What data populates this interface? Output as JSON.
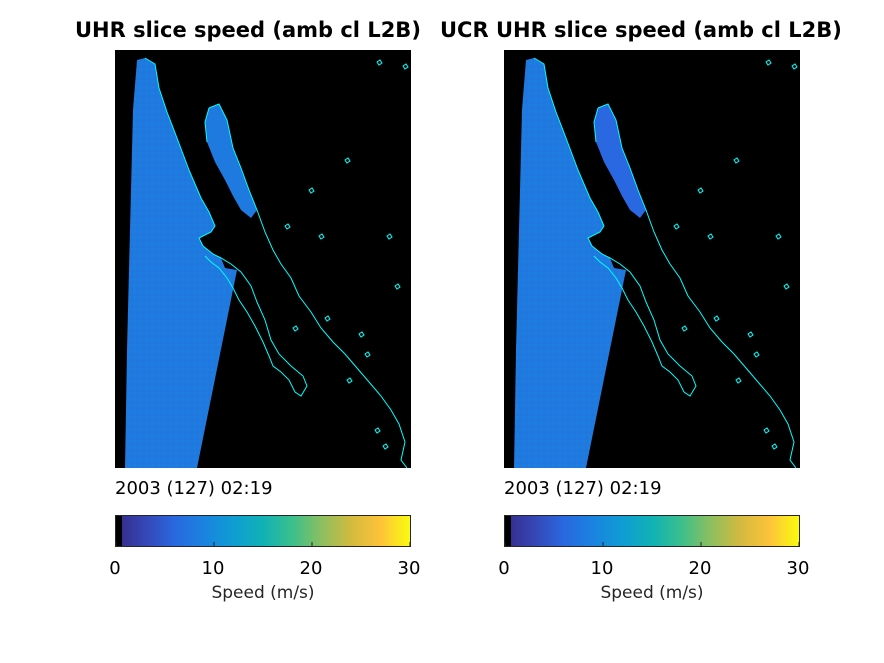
{
  "chart_data": [
    {
      "type": "heatmap",
      "title": "UHR slice speed (amb cl L2B)",
      "date_label": "2003 (127) 02:19",
      "colorbar": {
        "label": "Speed (m/s)",
        "range": [
          0,
          30
        ],
        "ticks": [
          0,
          10,
          20,
          30
        ],
        "colormap": "parula"
      },
      "swath_speed_typical": 8,
      "gulf_speed_typical": 8,
      "coast_color": "#00ffff",
      "nodata_color": "#000000"
    },
    {
      "type": "heatmap",
      "title": "UCR UHR slice speed (amb cl L2B)",
      "date_label": "2003 (127) 02:19",
      "colorbar": {
        "label": "Speed (m/s)",
        "range": [
          0,
          30
        ],
        "ticks": [
          0,
          10,
          20,
          30
        ],
        "colormap": "parula"
      },
      "swath_speed_typical": 8,
      "gulf_speed_typical": 6,
      "coast_color": "#00ffff",
      "nodata_color": "#000000"
    }
  ]
}
